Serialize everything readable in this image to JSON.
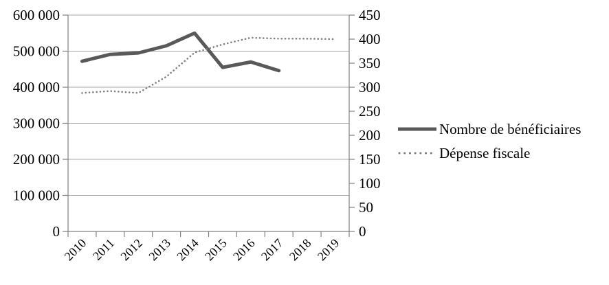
{
  "chart_data": {
    "type": "line",
    "categories": [
      "2010",
      "2011",
      "2012",
      "2013",
      "2014",
      "2015",
      "2016",
      "2017",
      "2018",
      "2019"
    ],
    "series": [
      {
        "name": "Nombre de bénéficiaires",
        "axis": "left",
        "line_style": "solid",
        "color": "#595959",
        "values": [
          472000,
          491000,
          495000,
          515000,
          550000,
          455000,
          470000,
          446000,
          null,
          null
        ]
      },
      {
        "name": "Dépense fiscale",
        "axis": "right",
        "line_style": "dotted",
        "color": "#7f7f7f",
        "values": [
          288,
          292,
          288,
          322,
          372,
          389,
          403,
          401,
          401,
          400
        ]
      }
    ],
    "left_axis": {
      "min": 0,
      "max": 600000,
      "step": 100000,
      "tick_labels": [
        "0",
        "100 000",
        "200 000",
        "300 000",
        "400 000",
        "500 000",
        "600 000"
      ]
    },
    "right_axis": {
      "min": 0,
      "max": 450,
      "step": 50,
      "tick_labels": [
        "0",
        "50",
        "100",
        "150",
        "200",
        "250",
        "300",
        "350",
        "400",
        "450"
      ]
    },
    "grid": true,
    "legend_position": "right"
  },
  "colors": {
    "solid_series": "#595959",
    "dotted_series": "#7f7f7f",
    "gridline": "#a6a6a6",
    "axis": "#808080",
    "text": "#000000",
    "background": "#ffffff"
  }
}
